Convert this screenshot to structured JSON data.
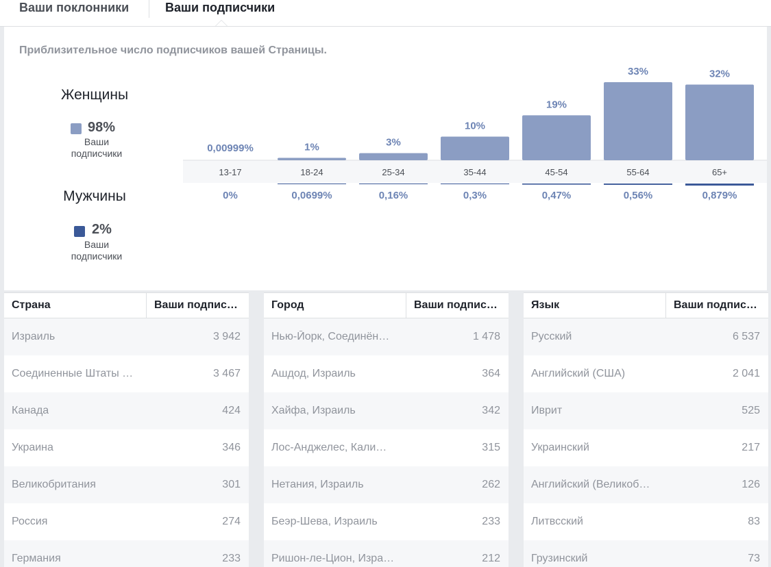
{
  "tabs": [
    "Ваши поклонники",
    "Ваши подписчики"
  ],
  "subtitle": "Приблизительное число подписчиков вашей Страницы.",
  "women": {
    "label": "Женщины",
    "percent": "98%",
    "sub1": "Ваши",
    "sub2": "подписчики"
  },
  "men": {
    "label": "Мужчины",
    "percent": "2%",
    "sub1": "Ваши",
    "sub2": "подписчики"
  },
  "colors": {
    "women": "#8b9dc3",
    "men": "#3b5998",
    "band": "#f6f7f9"
  },
  "chart_data": {
    "type": "bar",
    "categories": [
      "13-17",
      "18-24",
      "25-34",
      "35-44",
      "45-54",
      "55-64",
      "65+"
    ],
    "series": [
      {
        "name": "Женщины",
        "values": [
          0.00999,
          1,
          3,
          10,
          19,
          33,
          32
        ],
        "labels": [
          "0,00999%",
          "1%",
          "3%",
          "10%",
          "19%",
          "33%",
          "32%"
        ]
      },
      {
        "name": "Мужчины",
        "values": [
          0,
          0.0699,
          0.16,
          0.3,
          0.47,
          0.56,
          0.879
        ],
        "labels": [
          "0%",
          "0,0699%",
          "0,16%",
          "0,3%",
          "0,47%",
          "0,56%",
          "0,879%"
        ]
      }
    ]
  },
  "tables": {
    "country": {
      "h1": "Страна",
      "h2": "Ваши подпис…",
      "rows": [
        [
          "Израиль",
          "3 942"
        ],
        [
          "Соединенные Штаты …",
          "3 467"
        ],
        [
          "Канада",
          "424"
        ],
        [
          "Украина",
          "346"
        ],
        [
          "Великобритания",
          "301"
        ],
        [
          "Россия",
          "274"
        ],
        [
          "Германия",
          "233"
        ]
      ]
    },
    "city": {
      "h1": "Город",
      "h2": "Ваши подпис…",
      "rows": [
        [
          "Нью-Йорк, Соединённ…",
          "1 478"
        ],
        [
          "Ашдод, Израиль",
          "364"
        ],
        [
          "Хайфа, Израиль",
          "342"
        ],
        [
          "Лос-Анджелес, Калиф…",
          "315"
        ],
        [
          "Нетания, Израиль",
          "262"
        ],
        [
          "Беэр-Шева, Израиль",
          "233"
        ],
        [
          "Ришон-ле-Цион, Изра…",
          "212"
        ]
      ]
    },
    "language": {
      "h1": "Язык",
      "h2": "Ваши подпис…",
      "rows": [
        [
          "Русский",
          "6 537"
        ],
        [
          "Английский (США)",
          "2 041"
        ],
        [
          "Иврит",
          "525"
        ],
        [
          "Украинский",
          "217"
        ],
        [
          "Английский (Великобр…",
          "126"
        ],
        [
          "Литвсский",
          "83"
        ],
        [
          "Грузинский",
          "73"
        ]
      ]
    }
  }
}
